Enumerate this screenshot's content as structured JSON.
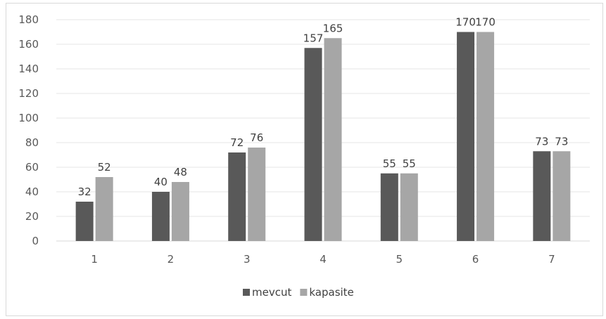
{
  "chart_data": {
    "type": "bar",
    "title": "",
    "xlabel": "",
    "ylabel": "",
    "categories": [
      "1",
      "2",
      "3",
      "4",
      "5",
      "6",
      "7"
    ],
    "series": [
      {
        "name": "mevcut",
        "color": "#595959",
        "values": [
          32,
          40,
          72,
          157,
          55,
          170,
          73
        ]
      },
      {
        "name": "kapasite",
        "color": "#a6a6a6",
        "values": [
          52,
          48,
          76,
          165,
          55,
          170,
          73
        ]
      }
    ],
    "ylim": [
      0,
      180
    ],
    "yticks": [
      0,
      20,
      40,
      60,
      80,
      100,
      120,
      140,
      160,
      180
    ],
    "grid": true,
    "legend_position": "bottom",
    "data_labels": true
  }
}
